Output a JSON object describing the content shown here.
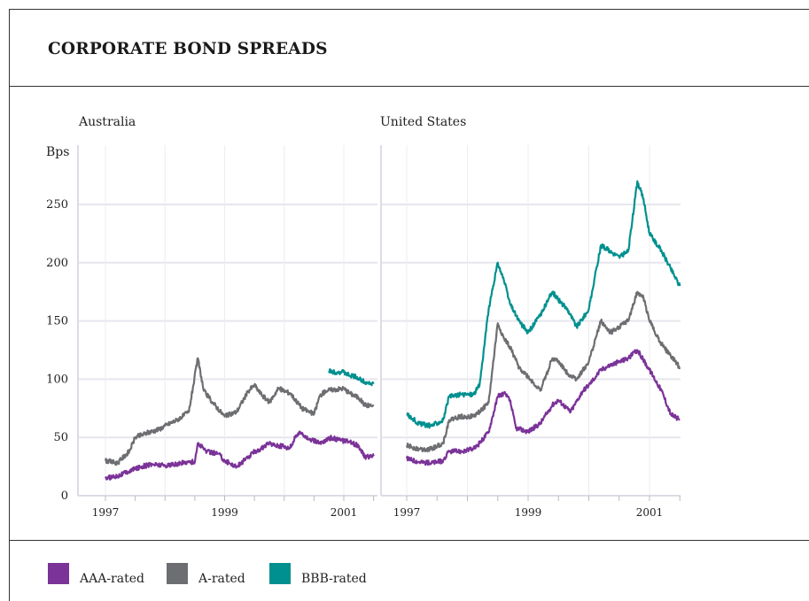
{
  "title": "CORPORATE BOND SPREADS",
  "ylabel": "Bps",
  "panels": {
    "left": "Australia",
    "right": "United States"
  },
  "legend": [
    {
      "label": "AAA-rated",
      "color": "#7b3398"
    },
    {
      "label": "A-rated",
      "color": "#6d6e71"
    },
    {
      "label": "BBB-rated",
      "color": "#00908f"
    }
  ],
  "chart_data": [
    {
      "type": "line",
      "title": "Australia",
      "ylabel": "Bps",
      "ylim": [
        0,
        300
      ],
      "yticks": [
        0,
        50,
        100,
        150,
        200,
        250
      ],
      "xlim": [
        1997.0,
        2001.65
      ],
      "xticks": [
        1997,
        1999,
        2001
      ],
      "grid": true,
      "series": [
        {
          "name": "AAA-rated",
          "color": "#7b3398",
          "x": [
            1997.0,
            1997.2,
            1997.4,
            1997.6,
            1997.8,
            1998.0,
            1998.2,
            1998.35,
            1998.5,
            1998.55,
            1998.7,
            1998.9,
            1999.0,
            1999.2,
            1999.4,
            1999.5,
            1999.6,
            1999.75,
            1999.9,
            2000.1,
            2000.2,
            2000.3,
            2000.4,
            2000.6,
            2000.8,
            2000.9,
            2001.1,
            2001.25,
            2001.35,
            2001.5
          ],
          "y": [
            15,
            17,
            21,
            25,
            27,
            26,
            27,
            29,
            29,
            45,
            38,
            36,
            30,
            25,
            33,
            38,
            40,
            45,
            43,
            41,
            52,
            54,
            49,
            45,
            50,
            48,
            46,
            43,
            33,
            34
          ]
        },
        {
          "name": "A-rated",
          "color": "#6d6e71",
          "x": [
            1997.0,
            1997.2,
            1997.4,
            1997.5,
            1997.7,
            1997.9,
            1998.0,
            1998.2,
            1998.4,
            1998.55,
            1998.65,
            1998.8,
            1999.0,
            1999.2,
            1999.4,
            1999.5,
            1999.6,
            1999.75,
            1999.9,
            2000.1,
            2000.3,
            2000.5,
            2000.6,
            2000.7,
            2000.8,
            2001.0,
            2001.1,
            2001.25,
            2001.35,
            2001.5
          ],
          "y": [
            30,
            28,
            38,
            50,
            54,
            57,
            60,
            65,
            72,
            118,
            90,
            80,
            68,
            72,
            90,
            95,
            88,
            80,
            92,
            88,
            75,
            70,
            86,
            90,
            91,
            92,
            88,
            84,
            78,
            77
          ]
        },
        {
          "name": "BBB-rated",
          "color": "#00908f",
          "x": [
            2000.75,
            2000.9,
            2001.0,
            2001.1,
            2001.2,
            2001.3,
            2001.4,
            2001.5
          ],
          "y": [
            107,
            106,
            106,
            103,
            102,
            99,
            97,
            96
          ]
        }
      ]
    },
    {
      "type": "line",
      "title": "United States",
      "ylabel": "Bps",
      "ylim": [
        0,
        300
      ],
      "yticks": [
        0,
        50,
        100,
        150,
        200,
        250
      ],
      "xlim": [
        1997.0,
        2001.65
      ],
      "xticks": [
        1997,
        1999,
        2001
      ],
      "grid": true,
      "series": [
        {
          "name": "AAA-rated",
          "color": "#7b3398",
          "x": [
            1997.0,
            1997.2,
            1997.4,
            1997.6,
            1997.7,
            1997.9,
            1998.1,
            1998.2,
            1998.35,
            1998.5,
            1998.6,
            1998.7,
            1998.8,
            1999.0,
            1999.2,
            1999.4,
            1999.5,
            1999.7,
            1999.9,
            2000.0,
            2000.2,
            2000.35,
            2000.5,
            2000.65,
            2000.8,
            2001.0,
            2001.2,
            2001.35,
            2001.5
          ],
          "y": [
            32,
            29,
            28,
            30,
            38,
            38,
            40,
            45,
            55,
            85,
            88,
            82,
            58,
            55,
            62,
            78,
            82,
            72,
            90,
            95,
            108,
            112,
            115,
            118,
            125,
            108,
            90,
            70,
            65
          ]
        },
        {
          "name": "A-rated",
          "color": "#6d6e71",
          "x": [
            1997.0,
            1997.2,
            1997.4,
            1997.6,
            1997.7,
            1997.9,
            1998.1,
            1998.2,
            1998.35,
            1998.5,
            1998.6,
            1998.7,
            1998.85,
            1999.0,
            1999.2,
            1999.4,
            1999.5,
            1999.65,
            1999.8,
            2000.0,
            2000.2,
            2000.35,
            2000.5,
            2000.65,
            2000.8,
            2000.9,
            2001.0,
            2001.2,
            2001.35,
            2001.5
          ],
          "y": [
            43,
            40,
            40,
            45,
            65,
            68,
            68,
            72,
            80,
            148,
            135,
            128,
            110,
            102,
            90,
            118,
            115,
            105,
            100,
            115,
            150,
            140,
            145,
            150,
            175,
            170,
            150,
            130,
            120,
            110
          ]
        },
        {
          "name": "BBB-rated",
          "color": "#00908f",
          "x": [
            1997.0,
            1997.2,
            1997.4,
            1997.6,
            1997.7,
            1997.9,
            1998.1,
            1998.2,
            1998.35,
            1998.5,
            1998.6,
            1998.7,
            1998.85,
            1999.0,
            1999.2,
            1999.4,
            1999.5,
            1999.65,
            1999.8,
            2000.0,
            2000.2,
            2000.35,
            2000.5,
            2000.65,
            2000.8,
            2000.9,
            2001.0,
            2001.2,
            2001.35,
            2001.5
          ],
          "y": [
            70,
            62,
            60,
            65,
            85,
            87,
            87,
            95,
            160,
            200,
            185,
            165,
            150,
            140,
            155,
            175,
            168,
            160,
            145,
            160,
            215,
            210,
            205,
            210,
            270,
            255,
            225,
            210,
            195,
            180
          ]
        }
      ]
    }
  ]
}
